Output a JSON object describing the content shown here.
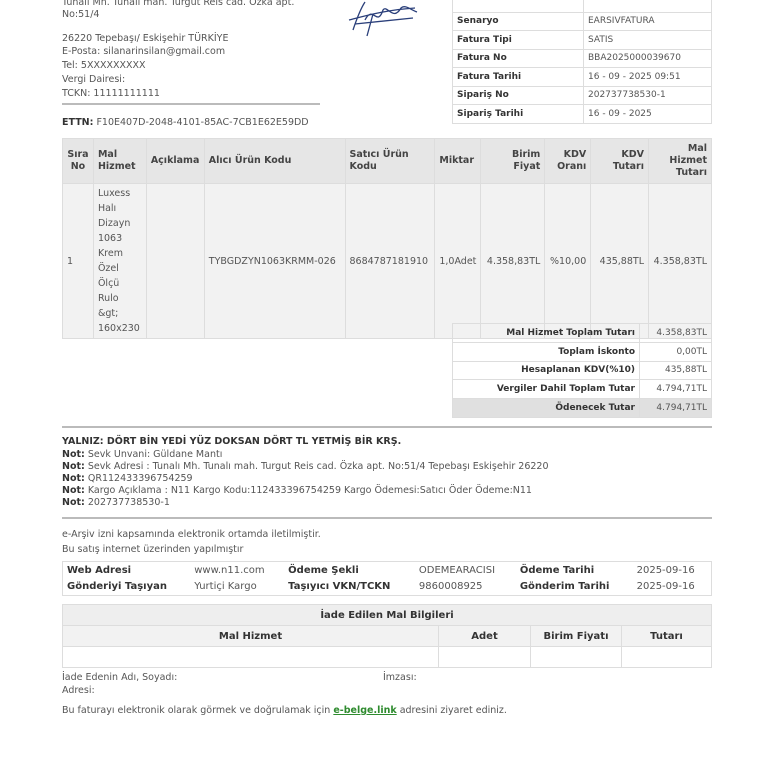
{
  "seller": {
    "address1": "Tunalı Mh. Tunalı mah. Turgut Reis cad. Özka apt.",
    "address2": "No:51/4",
    "city": "26220 Tepebaşı/ Eskişehir TÜRKİYE",
    "email": "E-Posta: silanarinsilan@gmail.com",
    "tel": "Tel: 5XXXXXXXXX",
    "tax_office": "Vergi Dairesi:",
    "tckn": "TCKN: 11111111111"
  },
  "ettn": {
    "label": "ETTN:",
    "value": "F10E407D-2048-4101-85AC-7CB1E62E59DD"
  },
  "invoice_info": [
    {
      "label": "Senaryo",
      "value": "EARSIVFATURA"
    },
    {
      "label": "Fatura Tipi",
      "value": "SATIS"
    },
    {
      "label": "Fatura No",
      "value": "BBA2025000039670"
    },
    {
      "label": "Fatura Tarihi",
      "value": "16 - 09 - 2025 09:51"
    },
    {
      "label": "Sipariş No",
      "value": "202737738530-1"
    },
    {
      "label": "Sipariş Tarihi",
      "value": "16 - 09 - 2025"
    }
  ],
  "items": {
    "headers": [
      "Sıra No",
      "Mal Hizmet",
      "Açıklama",
      "Alıcı Ürün Kodu",
      "Satıcı Ürün Kodu",
      "Miktar",
      "Birim Fiyat",
      "KDV Oranı",
      "KDV Tutarı",
      "Mal Hizmet Tutarı"
    ],
    "rows": [
      [
        "1",
        "Luxess Halı Dizayn 1063 Krem Özel Ölçü Rulo &gt; 160x230",
        "",
        "TYBGDZYN1063KRMM-026",
        "8684787181910",
        "1,0Adet",
        "4.358,83TL",
        "%10,00",
        "435,88TL",
        "4.358,83TL"
      ]
    ]
  },
  "totals": [
    {
      "label": "Mal Hizmet Toplam Tutarı",
      "value": "4.358,83TL"
    },
    {
      "label": "Toplam İskonto",
      "value": "0,00TL"
    },
    {
      "label": "Hesaplanan KDV(%10)",
      "value": "435,88TL"
    },
    {
      "label": "Vergiler Dahil Toplam Tutar",
      "value": "4.794,71TL"
    },
    {
      "label": "Ödenecek Tutar",
      "value": "4.794,71TL"
    }
  ],
  "yalniz": "YALNIZ:  DÖRT BİN YEDİ YÜZ DOKSAN DÖRT TL YETMİŞ BİR KRŞ.",
  "notes": {
    "label": "Not:",
    "items": [
      "Sevk Unvani: Güldane Mantı",
      "Sevk Adresi : Tunalı Mh. Tunalı mah. Turgut Reis cad. Özka apt. No:51/4 Tepebaşı Eskişehir 26220",
      "QR112433396754259",
      "Kargo Açıklama : N11 Kargo Kodu:112433396754259 Kargo Ödemesi:Satıcı Öder Ödeme:N11",
      "202737738530-1"
    ]
  },
  "earsiv_text": "e-Arşiv izni kapsamında elektronik ortamda iletilmiştir.",
  "internet_text": "Bu satış internet üzerinden yapılmıştır",
  "shipping": [
    [
      "Web Adresi",
      "www.n11.com",
      "Ödeme Şekli",
      "ODEMEARACISI",
      "Ödeme Tarihi",
      "2025-09-16"
    ],
    [
      "Gönderiyi Taşıyan",
      "Yurtiçi Kargo",
      "Taşıyıcı VKN/TCKN",
      "9860008925",
      "Gönderim Tarihi",
      "2025-09-16"
    ]
  ],
  "returns": {
    "title": "İade Edilen Mal Bilgileri",
    "headers": [
      "Mal Hizmet",
      "Adet",
      "Birim Fiyatı",
      "Tutarı"
    ],
    "returner": "İade Edenin Adı, Soyadı:",
    "address": "Adresi:",
    "signature": "İmzası:"
  },
  "footer": {
    "before": "Bu faturayı elektronik olarak görmek ve doğrulamak için ",
    "link": "e-belge.link",
    "after": " adresini ziyaret ediniz.",
    "link_color": "#2e8b2e"
  }
}
